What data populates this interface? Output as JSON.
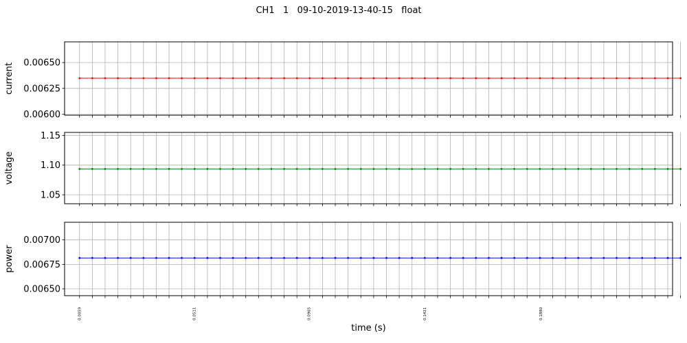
{
  "figure": {
    "title": "CH1   1   09-10-2019-13-40-15   float",
    "xlabel": "time (s)"
  },
  "chart_data": [
    {
      "type": "line",
      "ylabel": "current",
      "ylim": [
        0.00599,
        0.0067
      ],
      "yticks": [
        "0.00600",
        "0.00625",
        "0.00650"
      ],
      "ytick_values": [
        0.006,
        0.00625,
        0.0065
      ],
      "xlim": [
        0.0,
        0.2401
      ],
      "grid": true,
      "color": "#ff0000",
      "series": [
        {
          "x_start": 0.0059,
          "x_step": 0.00505,
          "count": 48,
          "values": 0.006348
        }
      ]
    },
    {
      "type": "line",
      "ylabel": "voltage",
      "ylim": [
        1.035,
        1.155
      ],
      "yticks": [
        "1.05",
        "1.10",
        "1.15"
      ],
      "ytick_values": [
        1.05,
        1.1,
        1.15
      ],
      "xlim": [
        0.0,
        0.2401
      ],
      "grid": true,
      "color": "#008000",
      "series": [
        {
          "x_start": 0.0059,
          "x_step": 0.00505,
          "count": 48,
          "values": 1.0935
        }
      ]
    },
    {
      "type": "line",
      "ylabel": "power",
      "ylim": [
        0.00643,
        0.00718
      ],
      "yticks": [
        "0.00650",
        "0.00675",
        "0.00700"
      ],
      "ytick_values": [
        0.0065,
        0.00675,
        0.007
      ],
      "xlim": [
        0.0,
        0.2401
      ],
      "grid": true,
      "color": "#0000ff",
      "series": [
        {
          "x_start": 0.0059,
          "x_step": 0.00505,
          "count": 48,
          "values": 0.006815
        }
      ]
    }
  ],
  "xtick_labels": [
    {
      "value": 0.0059,
      "label": "0.0059"
    },
    {
      "value": 0.0511,
      "label": "0.0511"
    },
    {
      "value": 0.0965,
      "label": "0.0965"
    },
    {
      "value": 0.1421,
      "label": "0.1421"
    },
    {
      "value": 0.188,
      "label": "0.1880"
    }
  ]
}
